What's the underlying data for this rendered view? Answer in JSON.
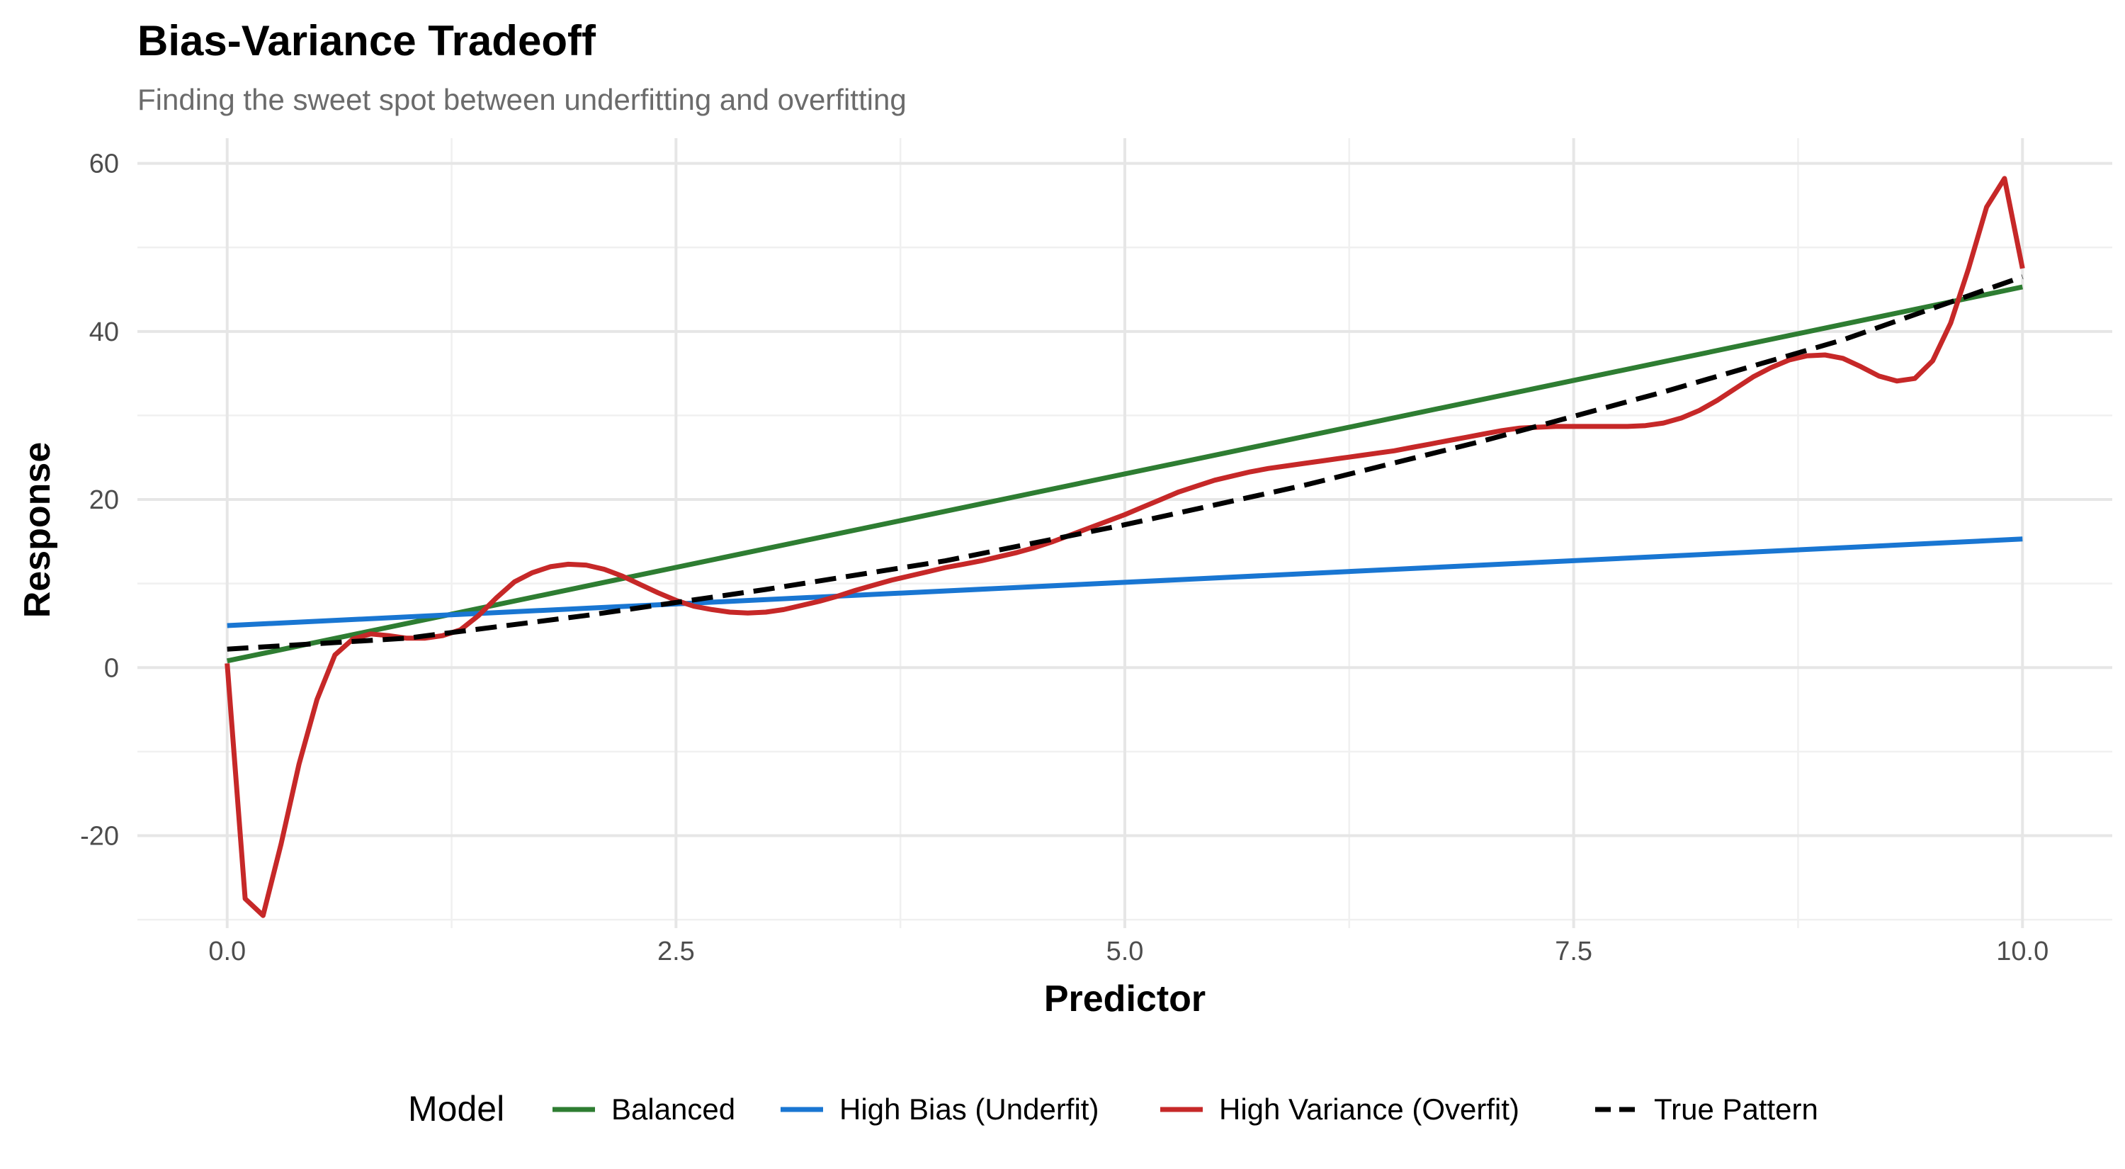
{
  "chart_data": {
    "type": "line",
    "title": "Bias-Variance Tradeoff",
    "subtitle": "Finding the sweet spot between underfitting and overfitting",
    "xlabel": "Predictor",
    "ylabel": "Response",
    "xlim": [
      -0.5,
      10.5
    ],
    "ylim": [
      -31,
      63
    ],
    "x_ticks": [
      0.0,
      2.5,
      5.0,
      7.5,
      10.0
    ],
    "x_tick_labels": [
      "0.0",
      "2.5",
      "5.0",
      "7.5",
      "10.0"
    ],
    "y_ticks": [
      -20,
      0,
      20,
      40,
      60
    ],
    "y_tick_labels": [
      "-20",
      "0",
      "20",
      "40",
      "60"
    ],
    "grid": true,
    "legend": {
      "title": "Model",
      "position": "bottom",
      "entries": [
        "Balanced",
        "High Bias (Underfit)",
        "High Variance (Overfit)",
        "True Pattern"
      ]
    },
    "series": [
      {
        "name": "Balanced",
        "color": "#2e7d32",
        "dash": "solid",
        "x": [
          0,
          10
        ],
        "y": [
          0.8,
          45.3
        ]
      },
      {
        "name": "High Bias (Underfit)",
        "color": "#1976d2",
        "dash": "solid",
        "x": [
          0,
          10
        ],
        "y": [
          5.0,
          15.3
        ]
      },
      {
        "name": "High Variance (Overfit)",
        "color": "#c62828",
        "dash": "solid",
        "x": [
          0.0,
          0.1,
          0.2,
          0.3,
          0.4,
          0.5,
          0.6,
          0.7,
          0.8,
          0.9,
          1.0,
          1.1,
          1.2,
          1.3,
          1.4,
          1.5,
          1.6,
          1.7,
          1.8,
          1.9,
          2.0,
          2.1,
          2.2,
          2.3,
          2.4,
          2.5,
          2.6,
          2.7,
          2.8,
          2.9,
          3.0,
          3.1,
          3.2,
          3.3,
          3.4,
          3.5,
          3.6,
          3.7,
          3.8,
          3.9,
          4.0,
          4.1,
          4.2,
          4.3,
          4.4,
          4.5,
          4.6,
          4.7,
          4.8,
          4.9,
          5.0,
          5.1,
          5.2,
          5.3,
          5.4,
          5.5,
          5.6,
          5.7,
          5.8,
          5.9,
          6.0,
          6.1,
          6.2,
          6.3,
          6.4,
          6.5,
          6.6,
          6.7,
          6.8,
          6.9,
          7.0,
          7.1,
          7.2,
          7.3,
          7.4,
          7.5,
          7.6,
          7.7,
          7.8,
          7.9,
          8.0,
          8.1,
          8.2,
          8.3,
          8.4,
          8.5,
          8.6,
          8.7,
          8.8,
          8.9,
          9.0,
          9.1,
          9.2,
          9.3,
          9.4,
          9.5,
          9.6,
          9.7,
          9.8,
          9.9,
          10.0
        ],
        "y": [
          0.5,
          -27.5,
          -29.5,
          -21.0,
          -11.5,
          -3.8,
          1.5,
          3.4,
          4.0,
          3.8,
          3.5,
          3.5,
          3.8,
          4.5,
          6.2,
          8.3,
          10.2,
          11.3,
          12.0,
          12.3,
          12.2,
          11.7,
          10.9,
          9.9,
          8.9,
          8.0,
          7.3,
          6.9,
          6.6,
          6.5,
          6.6,
          6.9,
          7.4,
          7.9,
          8.5,
          9.2,
          9.8,
          10.4,
          10.9,
          11.4,
          11.9,
          12.3,
          12.7,
          13.2,
          13.7,
          14.3,
          15.0,
          15.8,
          16.6,
          17.4,
          18.2,
          19.1,
          20.0,
          20.9,
          21.6,
          22.3,
          22.8,
          23.3,
          23.7,
          24.0,
          24.3,
          24.6,
          24.9,
          25.2,
          25.5,
          25.8,
          26.2,
          26.6,
          27.0,
          27.4,
          27.8,
          28.2,
          28.5,
          28.6,
          28.7,
          28.7,
          28.7,
          28.7,
          28.7,
          28.8,
          29.1,
          29.7,
          30.6,
          31.8,
          33.2,
          34.6,
          35.7,
          36.6,
          37.1,
          37.2,
          36.8,
          35.8,
          34.7,
          34.1,
          34.4,
          36.5,
          41.0,
          47.5,
          54.8,
          58.2,
          47.5
        ]
      },
      {
        "name": "True Pattern",
        "color": "#000000",
        "dash": "dashed",
        "x": [
          0,
          1,
          2,
          3,
          4,
          5,
          6,
          7,
          8,
          9,
          10
        ],
        "y": [
          2.2,
          3.5,
          6.2,
          9.3,
          12.7,
          17.0,
          21.7,
          27.0,
          32.8,
          39.0,
          46.5
        ]
      }
    ]
  }
}
